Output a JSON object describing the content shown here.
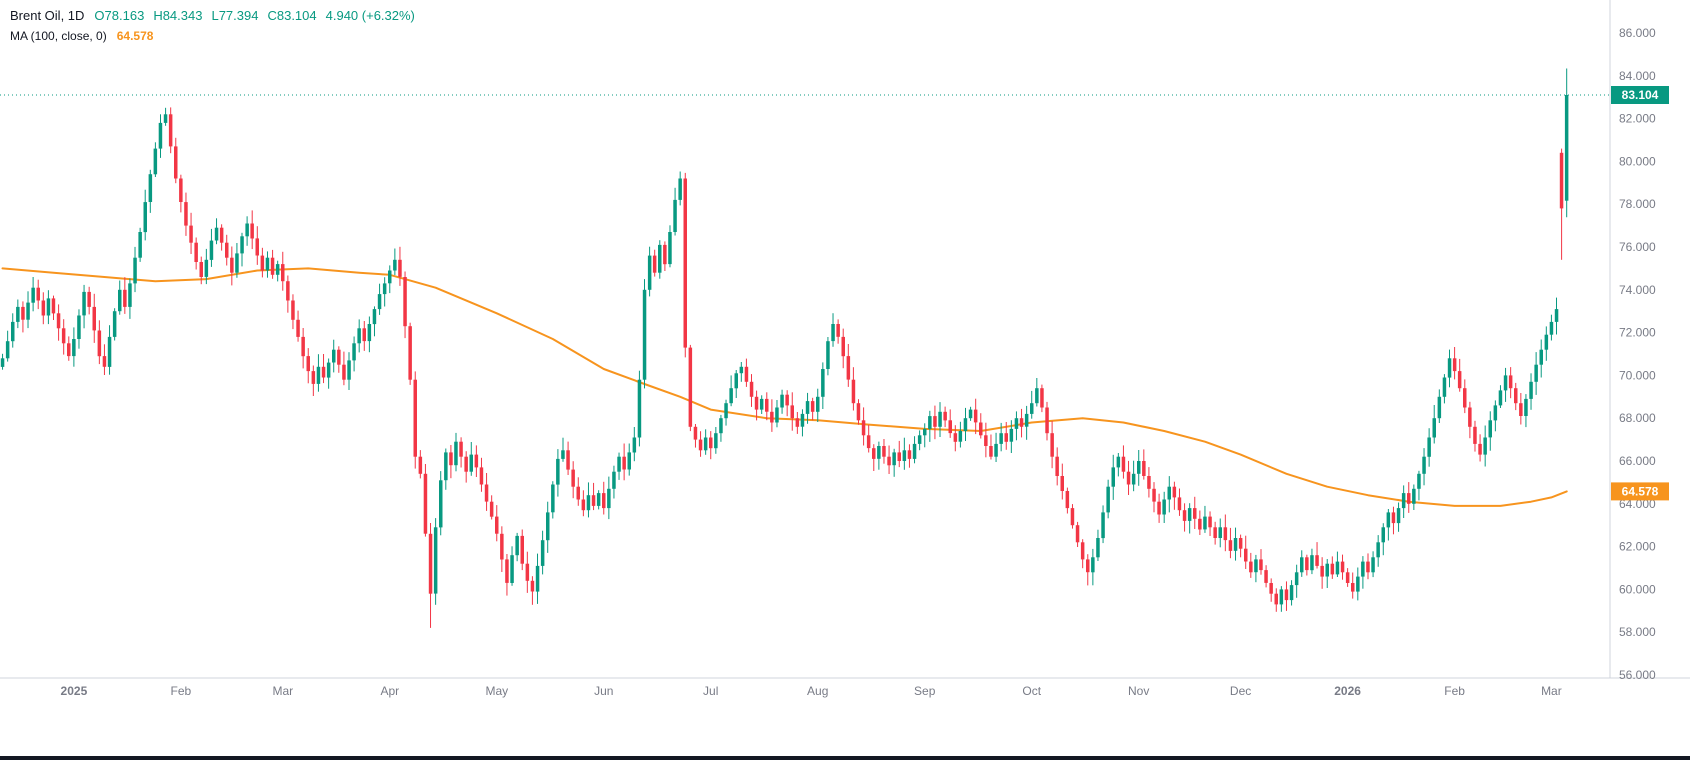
{
  "legend": {
    "title": "Brent Oil, 1D",
    "o_label": "O",
    "o": "78.163",
    "h_label": "H",
    "h": "84.343",
    "l_label": "L",
    "l": "77.394",
    "c_label": "C",
    "c": "83.104",
    "change": "4.940 (+6.32%)",
    "ma_title": "MA (100, close, 0)",
    "ma_value": "64.578"
  },
  "chart_data": {
    "type": "candlestick",
    "title": "Brent Oil, 1D",
    "timeframe": "1D",
    "last_ohlc": {
      "open": 78.163,
      "high": 84.343,
      "low": 77.394,
      "close": 83.104,
      "change_abs": "4.940",
      "change_pct": "+6.32%"
    },
    "indicator": {
      "name": "MA",
      "params": "(100, close, 0)",
      "value": 64.578
    },
    "ylim": [
      56,
      86
    ],
    "y_ticks": [
      86,
      84,
      82,
      80,
      78,
      76,
      74,
      72,
      70,
      68,
      66,
      64,
      62,
      60,
      58,
      56
    ],
    "x_ticks": [
      {
        "label": "2025",
        "i": 14,
        "strong": true
      },
      {
        "label": "Feb",
        "i": 35,
        "strong": false
      },
      {
        "label": "Mar",
        "i": 55,
        "strong": false
      },
      {
        "label": "Apr",
        "i": 76,
        "strong": false
      },
      {
        "label": "May",
        "i": 97,
        "strong": false
      },
      {
        "label": "Jun",
        "i": 118,
        "strong": false
      },
      {
        "label": "Jul",
        "i": 139,
        "strong": false
      },
      {
        "label": "Aug",
        "i": 160,
        "strong": false
      },
      {
        "label": "Sep",
        "i": 181,
        "strong": false
      },
      {
        "label": "Oct",
        "i": 202,
        "strong": false
      },
      {
        "label": "Nov",
        "i": 223,
        "strong": false
      },
      {
        "label": "Dec",
        "i": 243,
        "strong": false
      },
      {
        "label": "2026",
        "i": 264,
        "strong": true
      },
      {
        "label": "Feb",
        "i": 285,
        "strong": false
      },
      {
        "label": "Mar",
        "i": 304,
        "strong": false
      }
    ],
    "slots": 316,
    "closes": [
      70.8,
      71.6,
      72.5,
      73.2,
      72.6,
      73.4,
      74.1,
      73.5,
      72.8,
      73.6,
      72.9,
      72.2,
      71.5,
      70.9,
      71.7,
      72.8,
      73.9,
      73.2,
      72.1,
      70.9,
      70.4,
      71.8,
      73.0,
      74.0,
      73.2,
      74.3,
      75.5,
      76.7,
      78.1,
      79.4,
      80.6,
      81.8,
      82.2,
      80.7,
      79.2,
      78.1,
      77.0,
      76.2,
      75.3,
      74.6,
      75.4,
      76.3,
      76.9,
      76.2,
      75.5,
      74.8,
      75.7,
      76.5,
      77.1,
      76.4,
      75.6,
      74.9,
      75.5,
      74.7,
      75.2,
      74.4,
      73.5,
      72.6,
      71.8,
      70.9,
      70.2,
      69.6,
      70.4,
      69.9,
      70.6,
      71.2,
      70.5,
      69.8,
      70.7,
      71.5,
      72.2,
      71.6,
      72.4,
      73.1,
      73.8,
      74.3,
      74.9,
      75.4,
      74.6,
      72.3,
      69.8,
      66.2,
      65.4,
      62.6,
      59.8,
      62.9,
      65.1,
      66.4,
      65.8,
      66.9,
      66.2,
      65.5,
      66.3,
      65.7,
      64.9,
      64.1,
      63.4,
      62.6,
      61.4,
      60.3,
      61.6,
      62.5,
      61.2,
      60.4,
      59.9,
      61.1,
      62.3,
      63.6,
      64.9,
      66.1,
      66.5,
      65.6,
      64.8,
      64.2,
      63.7,
      64.4,
      63.9,
      64.5,
      63.8,
      64.7,
      65.5,
      66.2,
      65.6,
      66.4,
      67.1,
      69.8,
      74.0,
      75.6,
      74.8,
      76.1,
      75.2,
      76.7,
      78.2,
      79.2,
      71.3,
      67.6,
      67.0,
      66.5,
      67.1,
      66.6,
      67.3,
      68.0,
      68.7,
      69.4,
      70.1,
      70.4,
      69.7,
      69.0,
      68.4,
      68.9,
      68.3,
      67.8,
      68.5,
      69.1,
      68.6,
      68.0,
      67.6,
      68.2,
      68.8,
      68.3,
      69.0,
      70.3,
      71.6,
      72.4,
      71.8,
      70.9,
      69.8,
      68.7,
      67.9,
      67.2,
      66.6,
      66.1,
      66.7,
      66.2,
      65.8,
      66.4,
      66.0,
      66.5,
      66.1,
      66.8,
      67.2,
      67.5,
      68.1,
      67.6,
      68.3,
      67.9,
      67.3,
      66.9,
      67.4,
      68.0,
      68.4,
      67.8,
      67.2,
      66.7,
      66.2,
      66.8,
      67.3,
      66.9,
      67.5,
      68.0,
      67.6,
      68.2,
      68.7,
      69.4,
      68.5,
      67.3,
      66.2,
      65.3,
      64.6,
      63.8,
      63.0,
      62.2,
      61.4,
      60.8,
      61.5,
      62.4,
      63.6,
      64.8,
      65.7,
      66.2,
      65.5,
      64.9,
      65.4,
      66.0,
      65.3,
      64.7,
      64.1,
      63.5,
      64.2,
      64.8,
      64.3,
      63.7,
      63.2,
      63.8,
      63.3,
      62.8,
      63.4,
      62.9,
      62.4,
      62.9,
      62.3,
      61.8,
      62.4,
      61.9,
      61.3,
      60.8,
      61.4,
      60.9,
      60.3,
      59.8,
      59.3,
      60.0,
      59.5,
      60.2,
      60.8,
      61.5,
      60.9,
      61.6,
      61.1,
      60.6,
      61.2,
      60.7,
      61.3,
      60.8,
      60.3,
      59.9,
      60.6,
      61.3,
      60.8,
      61.5,
      62.2,
      62.9,
      63.6,
      63.1,
      63.8,
      64.5,
      64.0,
      64.7,
      65.4,
      66.2,
      67.1,
      68.0,
      69.0,
      69.9,
      70.8,
      70.2,
      69.4,
      68.5,
      67.6,
      66.8,
      66.3,
      67.1,
      67.9,
      68.6,
      69.3,
      70.0,
      69.4,
      68.7,
      68.1,
      68.9,
      69.7,
      70.5,
      71.2,
      71.9,
      72.5,
      73.1,
      77.8,
      83.104
    ],
    "overrides": {
      "84": {
        "l": 58.2
      },
      "306": {
        "o": 80.4,
        "h": 80.6,
        "l": 75.4,
        "c": 77.8
      },
      "307": {
        "o": 78.163,
        "h": 84.343,
        "l": 77.394,
        "c": 83.104
      }
    },
    "ma_points": [
      [
        0,
        75.0
      ],
      [
        10,
        74.8
      ],
      [
        20,
        74.6
      ],
      [
        30,
        74.4
      ],
      [
        40,
        74.5
      ],
      [
        50,
        74.9
      ],
      [
        60,
        75.0
      ],
      [
        70,
        74.8
      ],
      [
        76,
        74.7
      ],
      [
        85,
        74.1
      ],
      [
        97,
        72.9
      ],
      [
        108,
        71.7
      ],
      [
        118,
        70.3
      ],
      [
        126,
        69.6
      ],
      [
        133,
        69.0
      ],
      [
        139,
        68.4
      ],
      [
        150,
        68.0
      ],
      [
        160,
        67.9
      ],
      [
        170,
        67.7
      ],
      [
        181,
        67.5
      ],
      [
        192,
        67.4
      ],
      [
        202,
        67.8
      ],
      [
        212,
        68.0
      ],
      [
        220,
        67.8
      ],
      [
        228,
        67.4
      ],
      [
        236,
        66.9
      ],
      [
        243,
        66.3
      ],
      [
        252,
        65.4
      ],
      [
        260,
        64.8
      ],
      [
        268,
        64.4
      ],
      [
        276,
        64.1
      ],
      [
        285,
        63.9
      ],
      [
        294,
        63.9
      ],
      [
        300,
        64.1
      ],
      [
        304,
        64.3
      ],
      [
        307,
        64.578
      ]
    ],
    "last_price_label": "83.104",
    "ma_price_label": "64.578",
    "colors": {
      "up": "#089981",
      "down": "#f23645",
      "ma": "#f7941e",
      "price_line": "#089981",
      "axis_text": "#787b86",
      "axis_line": "#d1d4dc",
      "badge_text": "#ffffff"
    }
  }
}
